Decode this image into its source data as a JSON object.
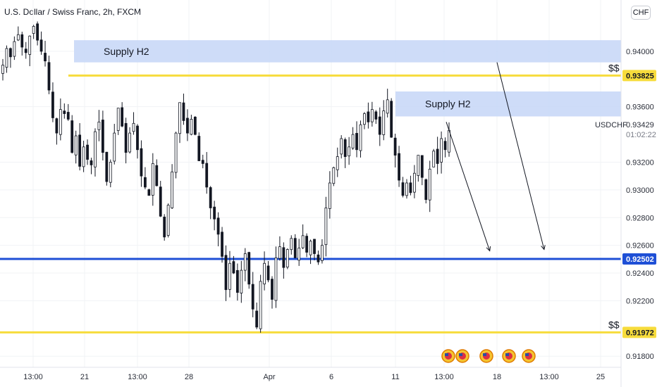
{
  "header": {
    "title": "U.S. Dollar / Swiss Franc, 2h, FXCM",
    "currency": "CHF"
  },
  "colors": {
    "bull": "#131722",
    "bear": "#131722",
    "zone": "#c6d6f7",
    "level_yellow": "#f7dc3c",
    "level_blue": "#1e4fd6",
    "axis_text": "#2a2e39",
    "grid": "#f1f3f6"
  },
  "chart_data": {
    "type": "candlestick",
    "symbol": "USDCHF",
    "timeframe": "2h",
    "ylim": [
      0.9172,
      0.9437
    ],
    "y_ticks": [
      "0.94000",
      "0.93600",
      "0.93200",
      "0.93000",
      "0.92800",
      "0.92600",
      "0.92400",
      "0.92200",
      "0.91800"
    ],
    "x_ticks": [
      "13:00",
      "21",
      "13:00",
      "28",
      "Apr",
      "6",
      "11",
      "13:00",
      "18",
      "13:00",
      "25"
    ],
    "price_labels": [
      {
        "label": "0.93825",
        "value": 0.93825,
        "style": "yellow"
      },
      {
        "label": "0.92502",
        "value": 0.92502,
        "style": "blue"
      },
      {
        "label": "0.91972",
        "value": 0.91972,
        "style": "yellow"
      }
    ],
    "last_price": "0.93429",
    "countdown": "01:02:22",
    "symbol_label": "USDCHF",
    "zones": [
      {
        "label": "Supply H2",
        "top": 0.9408,
        "bottom": 0.9392,
        "x_start": "Mar 19 20:00",
        "x_end": "Apr 25"
      },
      {
        "label": "Supply H2",
        "top": 0.9371,
        "bottom": 0.9353,
        "x_start": "Apr 11",
        "x_end": "Apr 25"
      }
    ],
    "levels": [
      {
        "value": 0.93825,
        "color": "yellow",
        "tag": "$$"
      },
      {
        "value": 0.92502,
        "color": "blue",
        "tag": ""
      },
      {
        "value": 0.91972,
        "color": "yellow",
        "tag": "$$"
      }
    ],
    "arrows": [
      {
        "from": {
          "time": "Apr 14 12:00",
          "price": 0.9349
        },
        "to": {
          "time": "Apr 17 12:00",
          "price": 0.9256
        }
      },
      {
        "from": {
          "time": "Apr 18 00:00",
          "price": 0.9392
        },
        "to": {
          "time": "Apr 21 06:00",
          "price": 0.9257
        }
      }
    ],
    "path": [
      0.939,
      0.9402,
      0.9396,
      0.9407,
      0.9412,
      0.9403,
      0.9399,
      0.9411,
      0.9418,
      0.9408,
      0.94,
      0.9393,
      0.9372,
      0.9352,
      0.9341,
      0.9358,
      0.9355,
      0.9351,
      0.9327,
      0.9339,
      0.9317,
      0.9331,
      0.9322,
      0.9318,
      0.9342,
      0.9349,
      0.9327,
      0.9306,
      0.932,
      0.9341,
      0.9359,
      0.9346,
      0.9327,
      0.9341,
      0.9348,
      0.9329,
      0.931,
      0.9302,
      0.9296,
      0.9319,
      0.9303,
      0.9281,
      0.9266,
      0.9289,
      0.9313,
      0.9341,
      0.9363,
      0.935,
      0.9341,
      0.9351,
      0.934,
      0.9321,
      0.9319,
      0.9302,
      0.9287,
      0.9279,
      0.9268,
      0.9252,
      0.9228,
      0.9247,
      0.924,
      0.9226,
      0.9242,
      0.9254,
      0.9232,
      0.9214,
      0.9201,
      0.9234,
      0.9247,
      0.9235,
      0.9221,
      0.9251,
      0.9259,
      0.9244,
      0.9257,
      0.9265,
      0.9251,
      0.9258,
      0.9267,
      0.9255,
      0.9263,
      0.9254,
      0.9248,
      0.926,
      0.9287,
      0.9305,
      0.9316,
      0.9324,
      0.9337,
      0.9324,
      0.9331,
      0.934,
      0.9329,
      0.9347,
      0.9355,
      0.9349,
      0.9358,
      0.9351,
      0.934,
      0.9357,
      0.9365,
      0.9338,
      0.9325,
      0.9307,
      0.9296,
      0.9305,
      0.9298,
      0.9312,
      0.9325,
      0.9309,
      0.9293,
      0.9315,
      0.9328,
      0.9319,
      0.9337,
      0.9329,
      0.9343
    ],
    "indicators": {
      "calendar_events": 5
    }
  }
}
